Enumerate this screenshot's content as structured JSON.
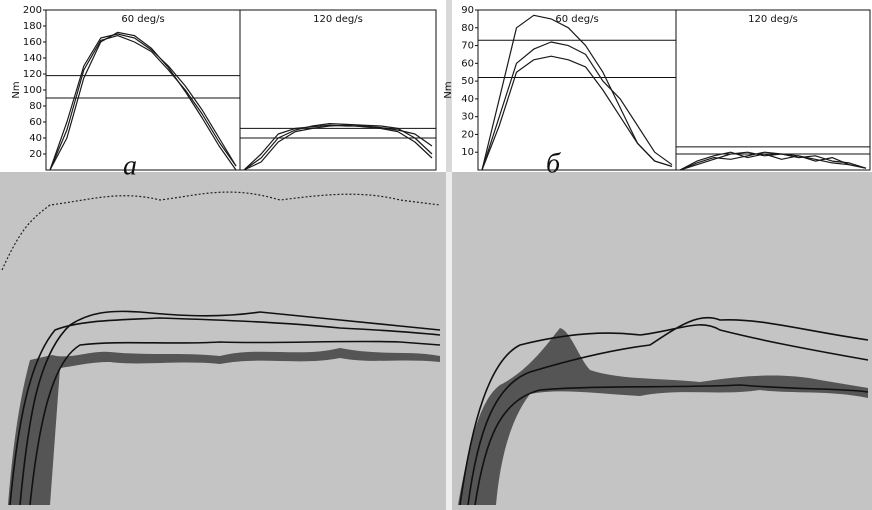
{
  "chart_data": [
    {
      "type": "line",
      "label": "а",
      "ylabel": "Nm",
      "ylim": [
        0,
        200
      ],
      "yticks": [
        20,
        40,
        60,
        80,
        100,
        120,
        140,
        160,
        180,
        200
      ],
      "panels": [
        {
          "title": "60 deg/s",
          "categories": [
            null,
            null,
            null,
            null,
            null,
            null,
            null,
            null,
            null,
            null,
            null,
            null
          ],
          "reference_lines": [
            118,
            90
          ],
          "series": [
            {
              "color": "#1a1a1a",
              "values": [
                0,
                60,
                130,
                165,
                170,
                165,
                150,
                130,
                105,
                75,
                40,
                5
              ]
            },
            {
              "color": "#1a1a1a",
              "values": [
                0,
                50,
                125,
                162,
                168,
                160,
                148,
                125,
                100,
                70,
                35,
                5
              ]
            },
            {
              "color": "#1a1a1a",
              "values": [
                0,
                40,
                115,
                160,
                172,
                168,
                152,
                128,
                98,
                65,
                30,
                0
              ]
            }
          ]
        },
        {
          "title": "120 deg/s",
          "categories": [
            null,
            null,
            null,
            null,
            null,
            null,
            null,
            null,
            null,
            null,
            null,
            null
          ],
          "reference_lines": [
            52,
            40
          ],
          "series": [
            {
              "color": "#1a1a1a",
              "values": [
                0,
                15,
                40,
                50,
                55,
                58,
                57,
                56,
                55,
                52,
                40,
                20
              ]
            },
            {
              "color": "#1a1a1a",
              "values": [
                0,
                10,
                35,
                48,
                52,
                55,
                56,
                54,
                52,
                48,
                35,
                15
              ]
            },
            {
              "color": "#1a1a1a",
              "values": [
                0,
                20,
                45,
                52,
                54,
                56,
                55,
                55,
                53,
                50,
                45,
                30
              ]
            }
          ]
        }
      ]
    },
    {
      "type": "line",
      "label": "б",
      "ylabel": "Nm",
      "ylim": [
        0,
        90
      ],
      "yticks": [
        10,
        20,
        30,
        40,
        50,
        60,
        70,
        80,
        90
      ],
      "panels": [
        {
          "title": "60 deg/s",
          "categories": [
            null,
            null,
            null,
            null,
            null,
            null,
            null,
            null,
            null,
            null,
            null,
            null
          ],
          "reference_lines": [
            73,
            52
          ],
          "series": [
            {
              "color": "#1a1a1a",
              "values": [
                0,
                40,
                80,
                87,
                85,
                80,
                70,
                55,
                35,
                15,
                5,
                2
              ]
            },
            {
              "color": "#1a1a1a",
              "values": [
                0,
                30,
                60,
                68,
                72,
                70,
                65,
                50,
                40,
                25,
                10,
                3
              ]
            },
            {
              "color": "#1a1a1a",
              "values": [
                0,
                25,
                55,
                62,
                64,
                62,
                58,
                45,
                30,
                15,
                5,
                2
              ]
            }
          ]
        },
        {
          "title": "120 deg/s",
          "categories": [
            null,
            null,
            null,
            null,
            null,
            null,
            null,
            null,
            null,
            null,
            null,
            null
          ],
          "reference_lines": [
            13,
            9
          ],
          "series": [
            {
              "color": "#1a1a1a",
              "values": [
                0,
                5,
                8,
                10,
                7,
                9,
                6,
                8,
                5,
                7,
                3,
                1
              ]
            },
            {
              "color": "#1a1a1a",
              "values": [
                0,
                3,
                6,
                9,
                10,
                8,
                9,
                7,
                8,
                5,
                4,
                1
              ]
            },
            {
              "color": "#1a1a1a",
              "values": [
                0,
                4,
                7,
                6,
                8,
                10,
                9,
                8,
                6,
                4,
                3,
                1
              ]
            }
          ]
        }
      ]
    }
  ]
}
